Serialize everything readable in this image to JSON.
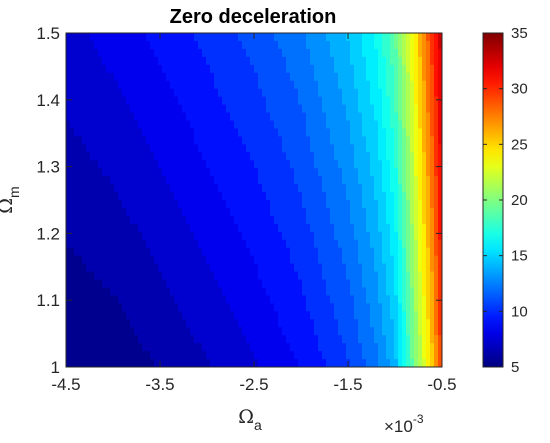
{
  "chart_data": {
    "type": "heatmap",
    "title": "Zero deceleration",
    "xlabel": "Ω",
    "xlabel_sub": "a",
    "ylabel": "Ω",
    "ylabel_sub": "m",
    "x_exponent_base": "×10",
    "x_exponent_power": "-3",
    "xlim": [
      -4.5,
      -0.5
    ],
    "ylim": [
      1.0,
      1.5
    ],
    "xticks": [
      -4.5,
      -3.5,
      -2.5,
      -1.5,
      -0.5
    ],
    "xtick_labels": [
      "-4.5",
      "-3.5",
      "-2.5",
      "-1.5",
      "-0.5"
    ],
    "yticks": [
      1.0,
      1.1,
      1.2,
      1.3,
      1.4,
      1.5
    ],
    "ytick_labels": [
      "1",
      "1.1",
      "1.2",
      "1.3",
      "1.4",
      "1.5"
    ],
    "colorbar": {
      "range": [
        5,
        35
      ],
      "ticks": [
        5,
        10,
        15,
        20,
        25,
        30,
        35
      ],
      "tick_labels": [
        "5",
        "10",
        "15",
        "20",
        "25",
        "30",
        "35"
      ],
      "colormap": "jet"
    },
    "field": {
      "description_levels": "value along bottom edge (y=1) and top edge (y=1.5) at given x (×10^-3)",
      "x": [
        -4.5,
        -4.0,
        -3.5,
        -3.0,
        -2.5,
        -2.0,
        -1.5,
        -1.2,
        -1.0,
        -0.9,
        -0.8,
        -0.7,
        -0.6,
        -0.5
      ],
      "bottom": [
        5.0,
        5.3,
        6.0,
        6.8,
        7.7,
        8.8,
        10.5,
        12.2,
        14.0,
        16.5,
        19.5,
        22.5,
        25.5,
        30.0
      ],
      "top": [
        7.5,
        8.2,
        9.0,
        10.0,
        11.0,
        12.3,
        14.5,
        16.5,
        19.0,
        21.5,
        24.0,
        27.0,
        30.0,
        33.0
      ]
    }
  }
}
